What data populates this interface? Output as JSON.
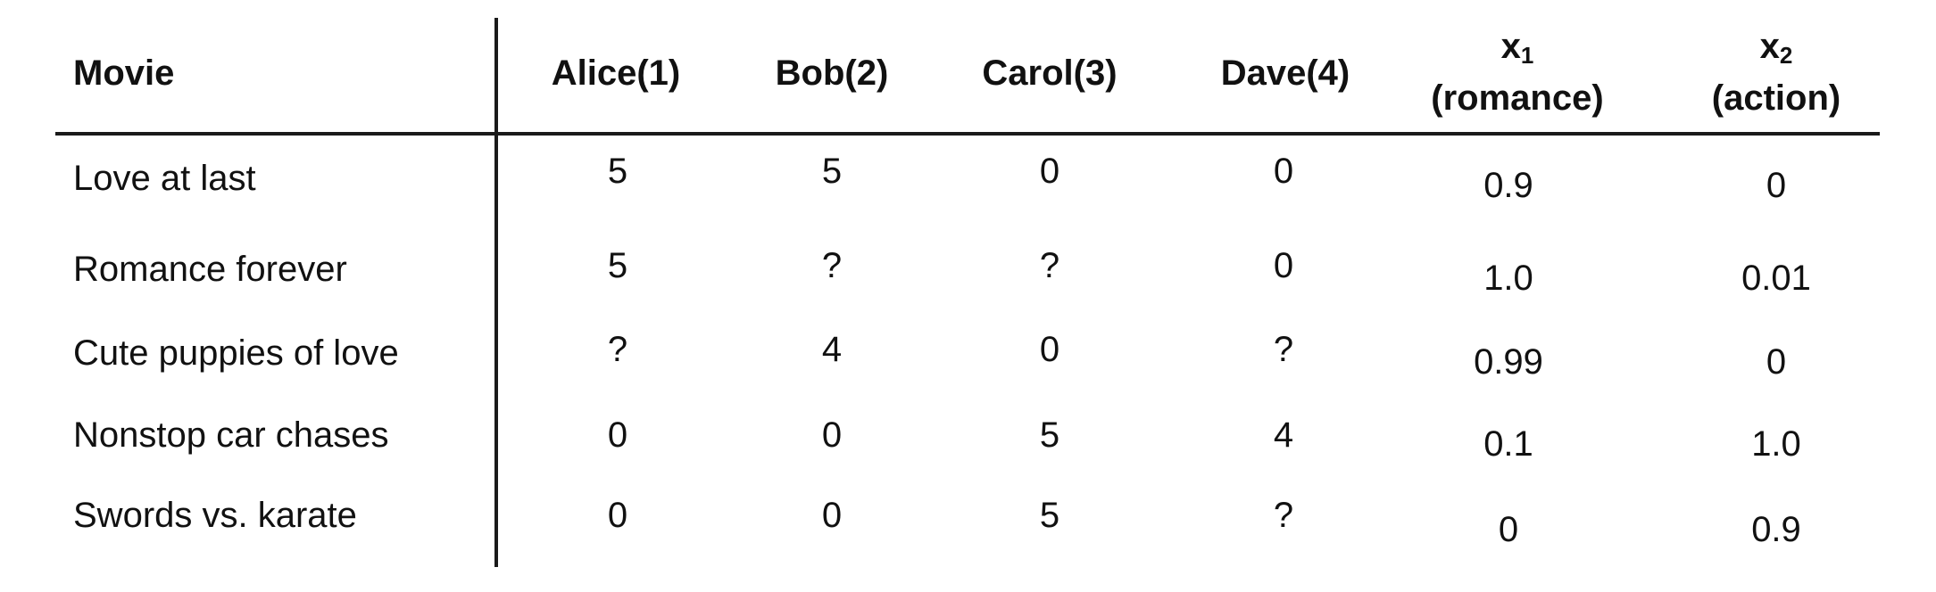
{
  "table": {
    "headers": {
      "movie": "Movie",
      "users": [
        "Alice(1)",
        "Bob(2)",
        "Carol(3)",
        "Dave(4)"
      ],
      "x1_var": "x",
      "x1_sub": "1",
      "x1_label": "(romance)",
      "x2_var": "x",
      "x2_sub": "2",
      "x2_label": "(action)"
    },
    "rows": [
      {
        "movie": "Love at last",
        "ratings": [
          "5",
          "5",
          "0",
          "0"
        ],
        "x1": "0.9",
        "x2": "0"
      },
      {
        "movie": "Romance forever",
        "ratings": [
          "5",
          "?",
          "?",
          "0"
        ],
        "x1": "1.0",
        "x2": "0.01"
      },
      {
        "movie": "Cute puppies of love",
        "ratings": [
          "?",
          "4",
          "0",
          "?"
        ],
        "x1": "0.99",
        "x2": "0"
      },
      {
        "movie": "Nonstop car chases",
        "ratings": [
          "0",
          "0",
          "5",
          "4"
        ],
        "x1": "0.1",
        "x2": "1.0"
      },
      {
        "movie": "Swords vs. karate",
        "ratings": [
          "0",
          "0",
          "5",
          "?"
        ],
        "x1": "0",
        "x2": "0.9"
      }
    ]
  }
}
